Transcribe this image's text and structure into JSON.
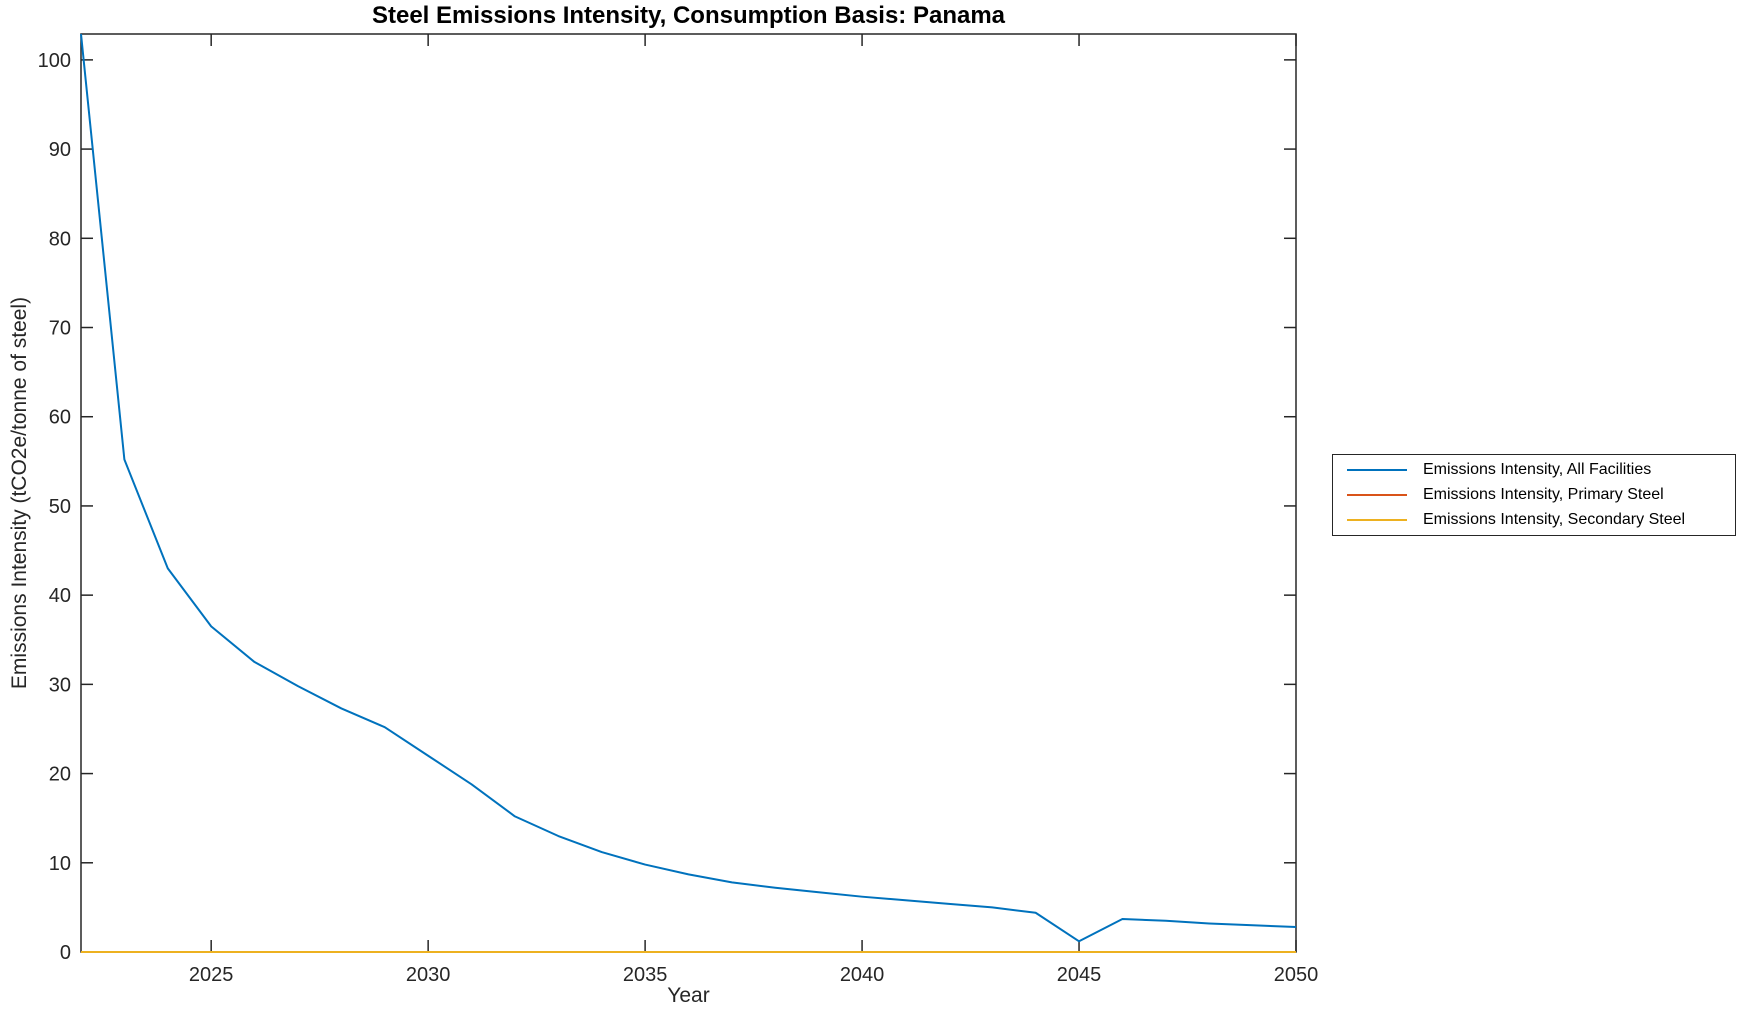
{
  "figure": {
    "title": "Steel Emissions Intensity, Consumption Basis: Panama",
    "xlabel": "Year",
    "ylabel": "Emissions Intensity (tCO2e/tonne of steel)"
  },
  "chart_data": {
    "type": "line",
    "title": "Steel Emissions Intensity, Consumption Basis: Panama",
    "xlabel": "Year",
    "ylabel": "Emissions Intensity (tCO2e/tonne of steel)",
    "xlim": [
      2022,
      2050
    ],
    "ylim": [
      0,
      102.9
    ],
    "xticks": [
      2025,
      2030,
      2035,
      2040,
      2045,
      2050
    ],
    "yticks": [
      0,
      10,
      20,
      30,
      40,
      50,
      60,
      70,
      80,
      90,
      100
    ],
    "grid": false,
    "legend_position": "outside-right",
    "axis_color": "#262626",
    "x": [
      2022,
      2023,
      2024,
      2025,
      2026,
      2027,
      2028,
      2029,
      2030,
      2031,
      2032,
      2033,
      2034,
      2035,
      2036,
      2037,
      2038,
      2039,
      2040,
      2041,
      2042,
      2043,
      2044,
      2045,
      2046,
      2047,
      2048,
      2049,
      2050
    ],
    "series": [
      {
        "name": "Emissions Intensity, All Facilities",
        "color": "#0072BD",
        "values": [
          102.9,
          55.2,
          43.0,
          36.5,
          32.5,
          29.8,
          27.3,
          25.2,
          22.0,
          18.8,
          15.2,
          13.0,
          11.2,
          9.8,
          8.7,
          7.8,
          7.2,
          6.7,
          6.2,
          5.8,
          5.4,
          5.0,
          4.4,
          1.2,
          3.7,
          3.5,
          3.2,
          3.0,
          2.8
        ]
      },
      {
        "name": "Emissions Intensity, Primary Steel",
        "color": "#D95319",
        "values": [
          0,
          0,
          0,
          0,
          0,
          0,
          0,
          0,
          0,
          0,
          0,
          0,
          0,
          0,
          0,
          0,
          0,
          0,
          0,
          0,
          0,
          0,
          0,
          0,
          0,
          0,
          0,
          0,
          0
        ]
      },
      {
        "name": "Emissions Intensity, Secondary Steel",
        "color": "#EDB120",
        "values": [
          0,
          0,
          0,
          0,
          0,
          0,
          0,
          0,
          0,
          0,
          0,
          0,
          0,
          0,
          0,
          0,
          0,
          0,
          0,
          0,
          0,
          0,
          0,
          0,
          0,
          0,
          0,
          0,
          0
        ]
      }
    ]
  }
}
